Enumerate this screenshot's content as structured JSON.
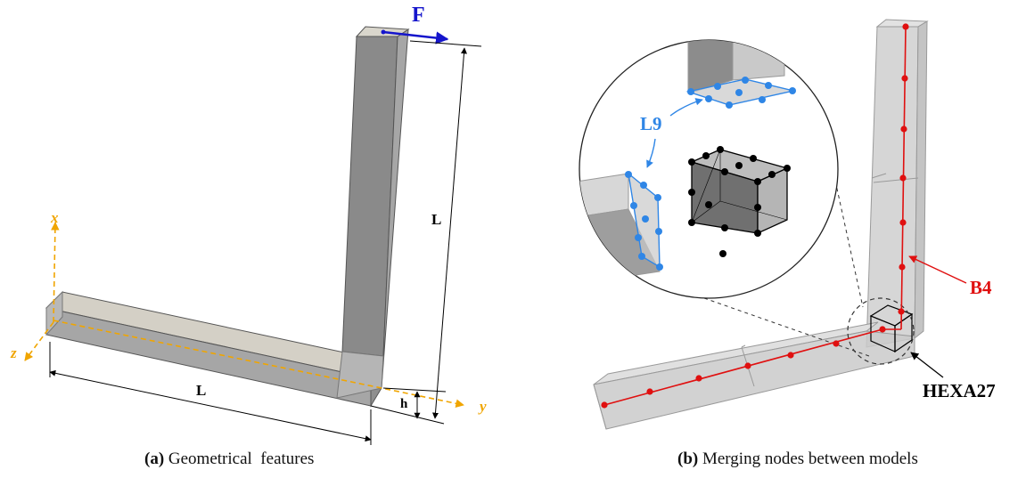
{
  "panel_a": {
    "force_label": "F",
    "length_label_vertical": "L",
    "length_label_horizontal": "L",
    "height_label": "h",
    "axis_x": "x",
    "axis_y": "y",
    "axis_z": "z",
    "caption_tag": "(a)",
    "caption_text": "Geometrical  features"
  },
  "panel_b": {
    "label_l9": "L9",
    "label_b4": "B4",
    "label_hexa27": "HEXA27",
    "caption_tag": "(b)",
    "caption_text": "Merging nodes between models"
  },
  "colors": {
    "force": "#1515cc",
    "axes": "#f0a500",
    "beam_nodes": "#e01010",
    "l9_nodes": "#2f86e6",
    "hexa_nodes": "#000000",
    "solid_fill": "#9a9a9a"
  }
}
